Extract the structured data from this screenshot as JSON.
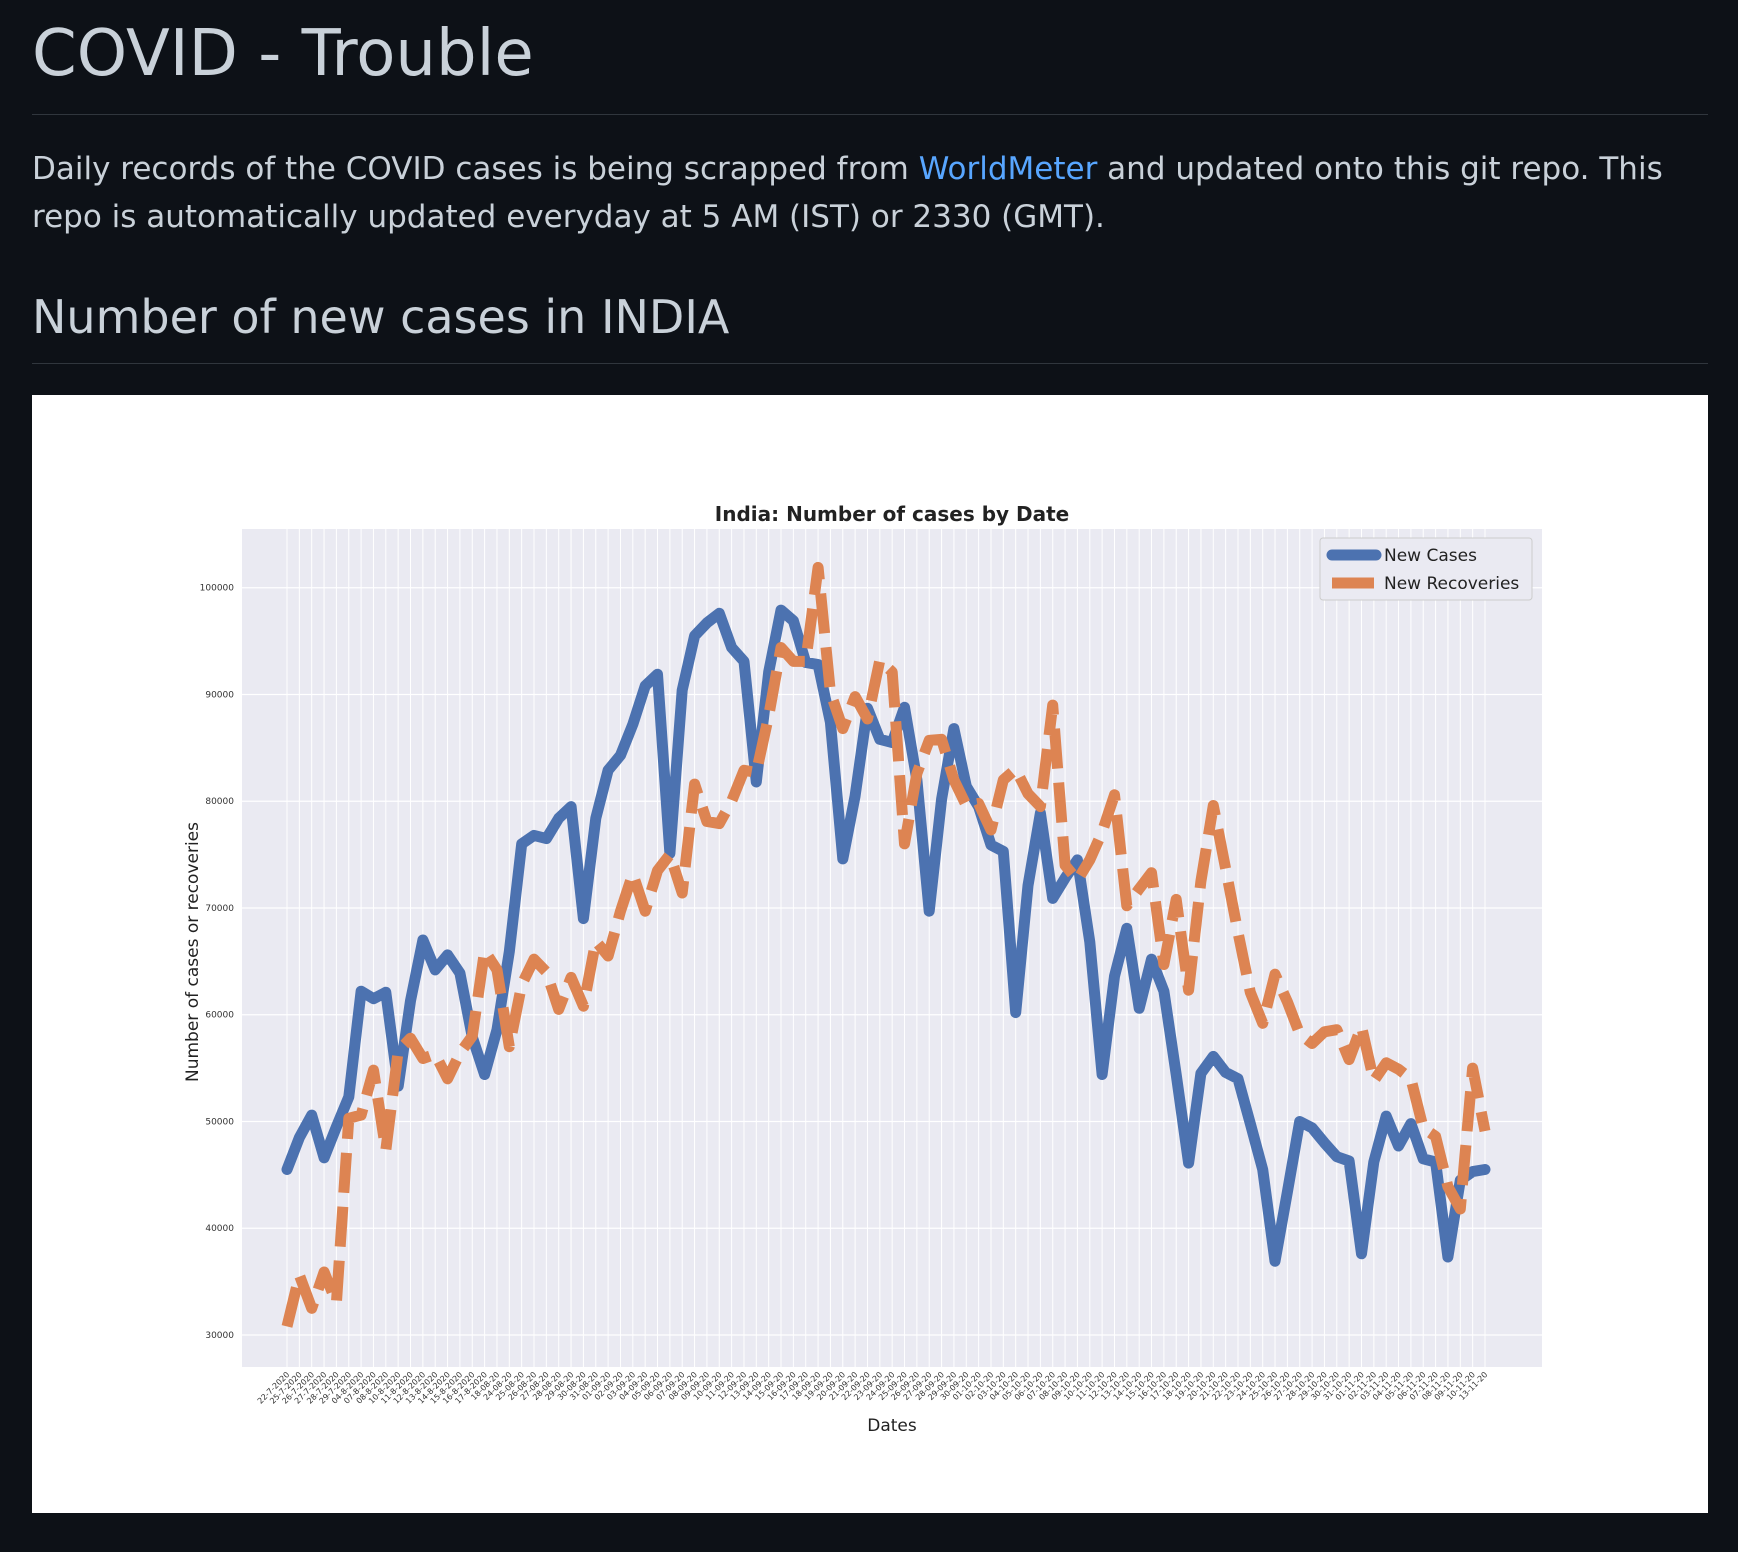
{
  "header": {
    "title": "COVID - Trouble"
  },
  "intro": {
    "text_before_link": "Daily records of the COVID cases is being scrapped from ",
    "link_text": "WorldMeter",
    "text_after_link": " and updated onto this git repo. This repo is automatically updated everyday at 5 AM (IST) or 2330 (GMT)."
  },
  "section": {
    "heading": "Number of new cases in INDIA"
  },
  "colors": {
    "page_background": "#0d1117",
    "text": "#c9d1d9",
    "link": "#58a6ff",
    "plot_background": "#eaeaf2",
    "new_cases": "#4c72b0",
    "new_recoveries": "#dd8452"
  },
  "chart_data": {
    "type": "line",
    "title": "India: Number of cases by Date",
    "xlabel": "Dates",
    "ylabel": "Number of cases or recoveries",
    "ylim": [
      27000,
      105500
    ],
    "yticks": [
      30000,
      40000,
      50000,
      60000,
      70000,
      80000,
      90000,
      100000
    ],
    "grid": true,
    "legend_position": "top-right",
    "x": [
      "22-7-2020",
      "25-7-2020",
      "26-7-2020",
      "27-7-2020",
      "28-7-2020",
      "29-7-2020",
      "04-8-2020",
      "07-8-2020",
      "08-8-2020",
      "10-8-2020",
      "11-8-2020",
      "12-8-2020",
      "13-8-2020",
      "14-8-2020",
      "15-8-2020",
      "16-8-2020",
      "17-8-2020",
      "18-08-20",
      "24-08-20",
      "25-08-20",
      "26-08-20",
      "27-08-20",
      "28-08-20",
      "29-08-20",
      "30-08-20",
      "31-08-20",
      "01-09-20",
      "02-09-20",
      "03-09-20",
      "04-09-20",
      "05-09-20",
      "06-09-20",
      "07-09-20",
      "08-09-20",
      "09-09-20",
      "10-09-20",
      "11-09-20",
      "12-09-20",
      "13-09-20",
      "14-09-20",
      "15-09-20",
      "16-09-20",
      "17-09-20",
      "18-09-20",
      "19-09-20",
      "20-09-20",
      "21-09-20",
      "22-09-20",
      "23-09-20",
      "24-09-20",
      "25-09-20",
      "26-09-20",
      "27-09-20",
      "28-09-20",
      "29-09-20",
      "30-09-20",
      "01-10-20",
      "02-10-20",
      "03-10-20",
      "04-10-20",
      "05-10-20",
      "06-10-20",
      "07-10-20",
      "08-10-20",
      "09-10-20",
      "10-10-20",
      "11-10-20",
      "12-10-20",
      "13-10-20",
      "14-10-20",
      "15-10-20",
      "16-10-20",
      "17-10-20",
      "18-10-20",
      "19-10-20",
      "20-10-20",
      "21-10-20",
      "22-10-20",
      "23-10-20",
      "24-10-20",
      "25-10-20",
      "26-10-20",
      "27-10-20",
      "28-10-20",
      "29-10-20",
      "30-10-20",
      "31-10-20",
      "01-11-20",
      "02-11-20",
      "03-11-20",
      "04-11-20",
      "05-11-20",
      "06-11-20",
      "07-11-20",
      "08-11-20",
      "09-11-20",
      "10-11-20",
      "13-11-20"
    ],
    "series": [
      {
        "name": "New Cases",
        "style": "solid",
        "values": [
          45500,
          48500,
          50600,
          46600,
          49500,
          52300,
          62200,
          61500,
          62100,
          53300,
          61300,
          67000,
          64200,
          65600,
          63900,
          57900,
          54400,
          58600,
          65900,
          76000,
          76800,
          76500,
          78400,
          79500,
          69000,
          78400,
          82900,
          84300,
          87200,
          90800,
          91900,
          75100,
          90400,
          95500,
          96700,
          97600,
          94400,
          93100,
          81800,
          92100,
          97900,
          96900,
          93000,
          92800,
          87400,
          74600,
          80500,
          88700,
          85800,
          85500,
          88800,
          82000,
          69700,
          80200,
          86800,
          81400,
          79500,
          75900,
          75300,
          60200,
          72100,
          78900,
          70900,
          72800,
          74500,
          66800,
          54400,
          63600,
          68100,
          60600,
          65200,
          62200,
          54400,
          46100,
          54500,
          56100,
          54600,
          54000,
          49800,
          45500,
          36900,
          43400,
          50000,
          49400,
          48000,
          46700,
          46300,
          37600,
          46200,
          50500,
          47700,
          49800,
          46500,
          46200,
          37300,
          44500,
          45300,
          45500
        ]
      },
      {
        "name": "New Recoveries",
        "style": "dashed",
        "values": [
          30800,
          35600,
          32500,
          35900,
          33000,
          50300,
          50600,
          54800,
          47300,
          56600,
          57800,
          55900,
          56300,
          54000,
          56400,
          58000,
          66000,
          64200,
          57000,
          62800,
          65200,
          64000,
          60500,
          63500,
          60800,
          66900,
          65500,
          69700,
          73200,
          69700,
          73500,
          75000,
          71400,
          81600,
          78100,
          77900,
          80000,
          82900,
          82700,
          88000,
          94400,
          93100,
          93100,
          101900,
          90200,
          86800,
          89800,
          87700,
          93200,
          92100,
          76000,
          82600,
          85700,
          85800,
          82000,
          79600,
          79800,
          77300,
          82000,
          83000,
          80700,
          79500,
          89000,
          74000,
          72600,
          74500,
          77100,
          80600,
          70200,
          71800,
          73300,
          64700,
          70800,
          62300,
          72500,
          79600,
          73700,
          67700,
          62100,
          59200,
          63800,
          61200,
          58200,
          57300,
          58400,
          58600,
          55800,
          58900,
          53800,
          55500,
          54900,
          54000,
          49400,
          48600,
          43900,
          41800,
          55000,
          49100
        ]
      }
    ]
  }
}
